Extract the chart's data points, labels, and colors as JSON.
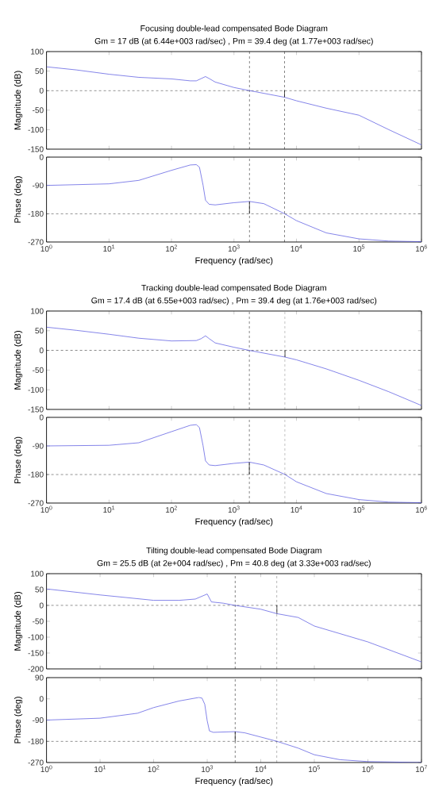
{
  "chart_data": [
    {
      "type": "line",
      "title": "Focusing double-lead compensated Bode Diagram",
      "subtitle": "Gm = 17 dB (at 6.44e+003 rad/sec) ,  Pm = 39.4 deg (at 1.77e+003 rad/sec)",
      "ylabel": "Magnitude (dB)",
      "log": "x",
      "tick_labels": "y",
      "xlim": [
        1,
        1000000
      ],
      "xticks": [
        {
          "value": 1,
          "label": null
        },
        {
          "value": 10,
          "label": null
        },
        {
          "value": 100,
          "label": null
        },
        {
          "value": 1000,
          "label": null
        },
        {
          "value": 10000,
          "label": null
        },
        {
          "value": 100000,
          "label": null
        },
        {
          "value": 1000000,
          "label": null
        }
      ],
      "ylim": [
        -150,
        100
      ],
      "yticks": [
        -150,
        -100,
        -50,
        0,
        50,
        100
      ],
      "ref_lines": [
        {
          "axis": "y",
          "value": 0,
          "line_style": "dashed",
          "color": "#000000"
        },
        {
          "axis": "x",
          "value": 1770,
          "line_style": "dashed",
          "color": "#000000"
        },
        {
          "axis": "x",
          "value": 6440,
          "line_style": "dashed",
          "color": "#000000"
        }
      ],
      "series": [
        {
          "color": "#5050e0",
          "x": [
            1,
            3,
            10,
            30,
            100,
            200,
            250,
            300,
            350,
            400,
            500,
            1000,
            1770,
            6440,
            10000,
            30000,
            100000,
            300000,
            1000000
          ],
          "values": [
            61,
            53,
            42,
            34,
            30,
            25,
            25,
            31,
            36,
            31,
            22,
            8,
            0,
            -17,
            -26,
            -45,
            -63,
            -100,
            -139
          ]
        },
        {
          "color": "#000000",
          "x": [
            6440,
            6440
          ],
          "values": [
            0,
            -17
          ]
        }
      ]
    },
    {
      "type": "line",
      "ylabel": "Phase (deg)",
      "xlabel": "Frequency  (rad/sec)",
      "log": "x",
      "xlim": [
        1,
        1000000
      ],
      "xticks": [
        {
          "value": 1,
          "label": "10$^{0}$"
        },
        {
          "value": 10,
          "label": "10$^{1}$"
        },
        {
          "value": 100,
          "label": "10$^{2}$"
        },
        {
          "value": 1000,
          "label": "10$^{3}$"
        },
        {
          "value": 10000,
          "label": "10$^{4}$"
        },
        {
          "value": 100000,
          "label": "10$^{5}$"
        },
        {
          "value": 1000000,
          "label": "10$^{6}$"
        }
      ],
      "ylim": [
        -270,
        0
      ],
      "yticks": [
        -270,
        -180,
        -90,
        0
      ],
      "ref_lines": [
        {
          "axis": "y",
          "value": -180,
          "line_style": "dashed",
          "color": "#000000"
        },
        {
          "axis": "x",
          "value": 1770,
          "line_style": "dashed",
          "color": "#000000"
        },
        {
          "axis": "x",
          "value": 6440,
          "line_style": "dashed",
          "color": "#000000"
        }
      ],
      "series": [
        {
          "color": "#5050e0",
          "x": [
            1,
            10,
            30,
            100,
            200,
            250,
            280,
            320,
            350,
            400,
            500,
            1000,
            1770,
            3000,
            6440,
            10000,
            30000,
            100000,
            300000,
            1000000
          ],
          "values": [
            -90,
            -85,
            -74,
            -42,
            -25,
            -24,
            -32,
            -89,
            -137,
            -150,
            -152,
            -145,
            -141,
            -148,
            -180,
            -202,
            -241,
            -260,
            -267,
            -269
          ]
        },
        {
          "color": "#000000",
          "x": [
            1770,
            1770
          ],
          "values": [
            -180,
            -141
          ]
        }
      ]
    },
    {
      "type": "line",
      "title": "Tracking double-lead compensated Bode Diagram",
      "subtitle": "Gm = 17.4 dB (at 6.55e+003 rad/sec) , Pm = 39.4 deg (at 1.76e+003 rad/sec)",
      "ylabel": "Magnitude (dB)",
      "log": "x",
      "tick_labels": "y",
      "xlim": [
        1,
        1000000
      ],
      "xticks": [
        {
          "value": 1,
          "label": null
        },
        {
          "value": 10,
          "label": null
        },
        {
          "value": 100,
          "label": null
        },
        {
          "value": 1000,
          "label": null
        },
        {
          "value": 10000,
          "label": null
        },
        {
          "value": 100000,
          "label": null
        },
        {
          "value": 1000000,
          "label": null
        }
      ],
      "ylim": [
        -150,
        100
      ],
      "yticks": [
        -150,
        -100,
        -50,
        0,
        50,
        100
      ],
      "ref_lines": [
        {
          "axis": "y",
          "value": 0,
          "line_style": "dashed",
          "color": "#000000"
        },
        {
          "axis": "x",
          "value": 1760,
          "line_style": "dashed",
          "color": "#000000"
        },
        {
          "axis": "x",
          "value": 6550,
          "line_style": "dashed",
          "color": "#000000"
        }
      ],
      "series": [
        {
          "color": "#5050e0",
          "x": [
            1,
            3,
            10,
            30,
            100,
            250,
            300,
            350,
            400,
            500,
            1000,
            1760,
            6550,
            10000,
            30000,
            100000,
            300000,
            1000000
          ],
          "values": [
            59,
            51,
            41,
            31,
            24,
            25,
            30,
            37,
            30,
            19,
            8,
            0,
            -17,
            -24,
            -47,
            -76,
            -105,
            -140
          ]
        },
        {
          "color": "#000000",
          "x": [
            6550,
            6550
          ],
          "values": [
            0,
            -17
          ]
        }
      ]
    },
    {
      "type": "line",
      "ylabel": "Phase (deg)",
      "xlabel": "Frequency  (rad/sec)",
      "log": "x",
      "xlim": [
        1,
        1000000
      ],
      "xticks": [
        {
          "value": 1,
          "label": "10$^{0}$"
        },
        {
          "value": 10,
          "label": "10$^{1}$"
        },
        {
          "value": 100,
          "label": "10$^{2}$"
        },
        {
          "value": 1000,
          "label": "10$^{3}$"
        },
        {
          "value": 10000,
          "label": "10$^{4}$"
        },
        {
          "value": 100000,
          "label": "10$^{5}$"
        },
        {
          "value": 1000000,
          "label": "10$^{6}$"
        }
      ],
      "ylim": [
        -270,
        0
      ],
      "yticks": [
        -270,
        -180,
        -90,
        0
      ],
      "ref_lines": [
        {
          "axis": "y",
          "value": -180,
          "line_style": "dashed",
          "color": "#000000"
        },
        {
          "axis": "x",
          "value": 1760,
          "line_style": "dashed",
          "color": "#000000"
        },
        {
          "axis": "x",
          "value": 6550,
          "line_style": "dashed",
          "color": "#000000"
        }
      ],
      "series": [
        {
          "color": "#5050e0",
          "x": [
            1,
            10,
            30,
            100,
            200,
            250,
            280,
            320,
            350,
            400,
            500,
            1000,
            1760,
            3000,
            6550,
            10000,
            30000,
            100000,
            300000,
            1000000
          ],
          "values": [
            -90,
            -88,
            -80,
            -45,
            -25,
            -23,
            -32,
            -89,
            -137,
            -150,
            -152,
            -145,
            -141,
            -150,
            -180,
            -203,
            -240,
            -259,
            -267,
            -269
          ]
        },
        {
          "color": "#000000",
          "x": [
            1760,
            1760
          ],
          "values": [
            -180,
            -141
          ]
        }
      ]
    },
    {
      "type": "line",
      "title": "Tilting double-lead compensated Bode Diagram",
      "subtitle": "Gm = 25.5 dB (at 2e+004 rad/sec) , Pm = 40.8 deg (at 3.33e+003 rad/sec)",
      "ylabel": "Magnitude (dB)",
      "log": "x",
      "tick_labels": "y",
      "xlim": [
        1,
        10000000
      ],
      "xticks": [
        {
          "value": 1,
          "label": null
        },
        {
          "value": 10,
          "label": null
        },
        {
          "value": 100,
          "label": null
        },
        {
          "value": 1000,
          "label": null
        },
        {
          "value": 10000,
          "label": null
        },
        {
          "value": 100000,
          "label": null
        },
        {
          "value": 1000000,
          "label": null
        },
        {
          "value": 10000000,
          "label": null
        }
      ],
      "ylim": [
        -200,
        100
      ],
      "yticks": [
        -200,
        -150,
        -100,
        -50,
        0,
        50,
        100
      ],
      "ref_lines": [
        {
          "axis": "y",
          "value": 0,
          "line_style": "dashed",
          "color": "#000000"
        },
        {
          "axis": "x",
          "value": 3330,
          "line_style": "dashed",
          "color": "#000000"
        },
        {
          "axis": "x",
          "value": 20000,
          "line_style": "dashed",
          "color": "#000000"
        }
      ],
      "series": [
        {
          "color": "#5050e0",
          "x": [
            1,
            10,
            30,
            100,
            300,
            600,
            1000,
            1200,
            2000,
            3330,
            10000,
            20000,
            50000,
            100000,
            1000000,
            10000000
          ],
          "values": [
            52,
            33,
            25,
            16,
            16,
            20,
            36,
            11,
            7,
            0,
            -12,
            -26,
            -38,
            -65,
            -115,
            -178
          ]
        },
        {
          "color": "#000000",
          "x": [
            20000,
            20000
          ],
          "values": [
            0,
            -26
          ]
        }
      ]
    },
    {
      "type": "line",
      "ylabel": "Phase (deg)",
      "xlabel": "Frequency  (rad/sec)",
      "log": "x",
      "xlim": [
        1,
        10000000
      ],
      "xticks": [
        {
          "value": 1,
          "label": "10$^{0}$"
        },
        {
          "value": 10,
          "label": "10$^{1}$"
        },
        {
          "value": 100,
          "label": "10$^{2}$"
        },
        {
          "value": 1000,
          "label": "10$^{3}$"
        },
        {
          "value": 10000,
          "label": "10$^{4}$"
        },
        {
          "value": 100000,
          "label": "10$^{5}$"
        },
        {
          "value": 1000000,
          "label": "10$^{6}$"
        },
        {
          "value": 10000000,
          "label": "10$^{7}$"
        }
      ],
      "ylim": [
        -270,
        90
      ],
      "yticks": [
        -270,
        -180,
        -90,
        0,
        90
      ],
      "ref_lines": [
        {
          "axis": "y",
          "value": -180,
          "line_style": "dashed",
          "color": "#000000"
        },
        {
          "axis": "x",
          "value": 3330,
          "line_style": "dashed",
          "color": "#000000"
        },
        {
          "axis": "x",
          "value": 20000,
          "line_style": "dashed",
          "color": "#000000"
        }
      ],
      "series": [
        {
          "color": "#5050e0",
          "x": [
            1,
            10,
            50,
            100,
            300,
            700,
            800,
            900,
            1000,
            1100,
            1300,
            3330,
            5000,
            10000,
            20000,
            50000,
            100000,
            300000,
            1000000,
            10000000
          ],
          "values": [
            -90,
            -82,
            -61,
            -37,
            -9,
            6,
            3,
            -23,
            -93,
            -136,
            -142,
            -139,
            -144,
            -162,
            -180,
            -209,
            -237,
            -258,
            -266,
            -270
          ]
        },
        {
          "color": "#000000",
          "x": [
            3330,
            3330
          ],
          "values": [
            -180,
            -139
          ]
        }
      ]
    }
  ]
}
